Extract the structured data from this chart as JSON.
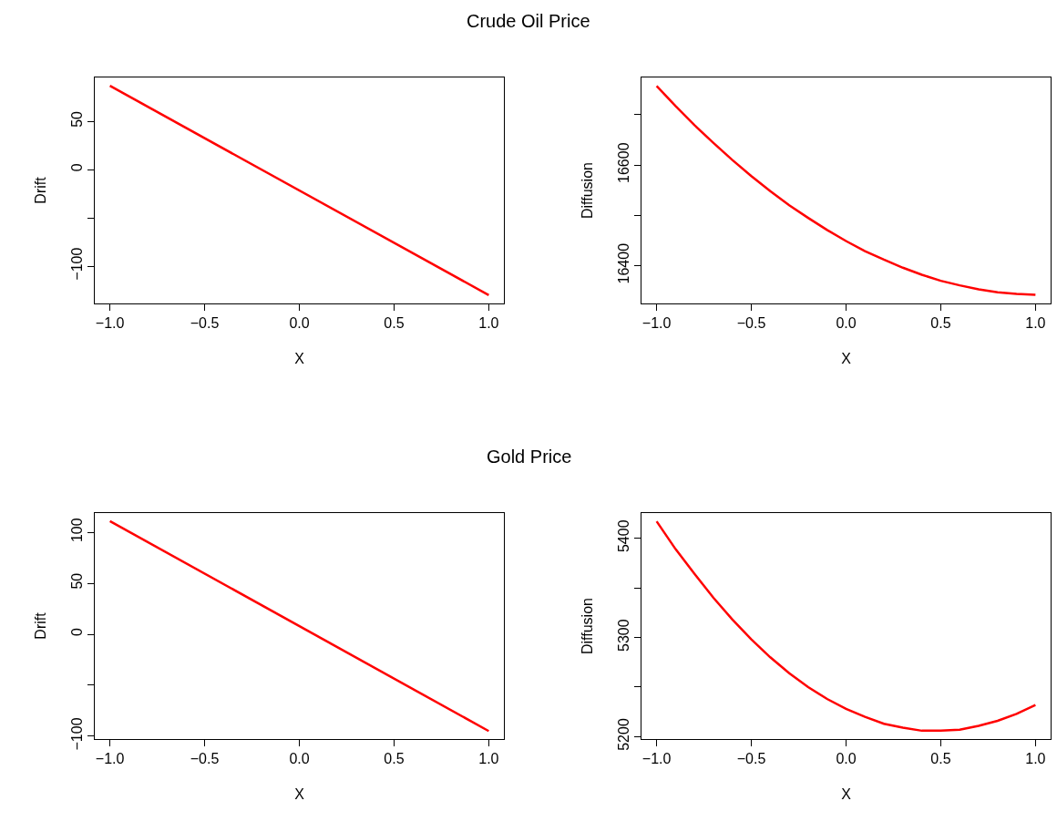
{
  "chart_data": [
    {
      "type": "line",
      "title": "Crude Oil Price",
      "xlabel": "X",
      "ylabel": "Drift",
      "x": [
        -1,
        1
      ],
      "series": [
        {
          "color": "#ff0000",
          "values": [
            87,
            -130
          ]
        }
      ],
      "xlim": [
        -1.08,
        1.08
      ],
      "xticks": [
        {
          "value": -1,
          "label": "−1.0"
        },
        {
          "value": -0.5,
          "label": "−0.5"
        },
        {
          "value": 0,
          "label": "0.0"
        },
        {
          "value": 0.5,
          "label": "0.5"
        },
        {
          "value": 1,
          "label": "1.0"
        }
      ],
      "ylim": [
        -138.7,
        95.7
      ],
      "yticks": [
        {
          "value": -100,
          "label": "−100"
        },
        {
          "value": -50,
          "label": null
        },
        0,
        50
      ],
      "marker": "none",
      "line_style": "solid"
    },
    {
      "type": "line",
      "xlabel": "X",
      "ylabel": "Diffusion",
      "x": [
        -1,
        -0.9,
        -0.8,
        -0.7,
        -0.6,
        -0.5,
        -0.4,
        -0.3,
        -0.2,
        -0.1,
        0,
        0.1,
        0.2,
        0.3,
        0.4,
        0.5,
        0.6,
        0.7,
        0.8,
        0.9,
        1
      ],
      "series": [
        {
          "color": "#ff0000",
          "values": [
            16757,
            16717,
            16679,
            16644,
            16610,
            16578,
            16548,
            16520,
            16495,
            16471,
            16449,
            16429,
            16412,
            16396,
            16382,
            16370,
            16361,
            16353,
            16347,
            16344,
            16342
          ]
        }
      ],
      "xlim": [
        -1.08,
        1.08
      ],
      "xticks": [
        {
          "value": -1,
          "label": "−1.0"
        },
        {
          "value": -0.5,
          "label": "−0.5"
        },
        {
          "value": 0,
          "label": "0.0"
        },
        {
          "value": 0.5,
          "label": "0.5"
        },
        {
          "value": 1,
          "label": "1.0"
        }
      ],
      "ylim": [
        16325,
        16774
      ],
      "yticks": [
        16400,
        {
          "value": 16500,
          "label": null
        },
        16600,
        {
          "value": 16700,
          "label": null
        }
      ],
      "marker": "none",
      "line_style": "solid"
    },
    {
      "type": "line",
      "title": "Gold Price",
      "xlabel": "X",
      "ylabel": "Drift",
      "x": [
        -1,
        1
      ],
      "series": [
        {
          "color": "#ff0000",
          "values": [
            111,
            -95
          ]
        }
      ],
      "xlim": [
        -1.08,
        1.08
      ],
      "xticks": [
        {
          "value": -1,
          "label": "−1.0"
        },
        {
          "value": -0.5,
          "label": "−0.5"
        },
        {
          "value": 0,
          "label": "0.0"
        },
        {
          "value": 0.5,
          "label": "0.5"
        },
        {
          "value": 1,
          "label": "1.0"
        }
      ],
      "ylim": [
        -102.8,
        118.9
      ],
      "yticks": [
        {
          "value": -100,
          "label": "−100"
        },
        {
          "value": -50,
          "label": null
        },
        0,
        50,
        100
      ],
      "marker": "none",
      "line_style": "solid"
    },
    {
      "type": "line",
      "xlabel": "X",
      "ylabel": "Diffusion",
      "x": [
        -1,
        -0.9,
        -0.8,
        -0.7,
        -0.6,
        -0.5,
        -0.4,
        -0.3,
        -0.2,
        -0.1,
        0,
        0.1,
        0.2,
        0.3,
        0.4,
        0.5,
        0.6,
        0.7,
        0.8,
        0.9,
        1
      ],
      "series": [
        {
          "color": "#ff0000",
          "values": [
            5417,
            5389,
            5364,
            5340,
            5318,
            5298,
            5280,
            5264,
            5250,
            5238,
            5228,
            5220,
            5213,
            5209,
            5206,
            5206,
            5207,
            5211,
            5216,
            5223,
            5232
          ]
        }
      ],
      "xlim": [
        -1.08,
        1.08
      ],
      "xticks": [
        {
          "value": -1,
          "label": "−1.0"
        },
        {
          "value": -0.5,
          "label": "−0.5"
        },
        {
          "value": 0,
          "label": "0.0"
        },
        {
          "value": 0.5,
          "label": "0.5"
        },
        {
          "value": 1,
          "label": "1.0"
        }
      ],
      "ylim": [
        5197.6,
        5425.4
      ],
      "yticks": [
        5200,
        {
          "value": 5250,
          "label": null
        },
        5300,
        {
          "value": 5350,
          "label": null
        },
        5400
      ],
      "marker": "none",
      "line_style": "solid"
    }
  ]
}
